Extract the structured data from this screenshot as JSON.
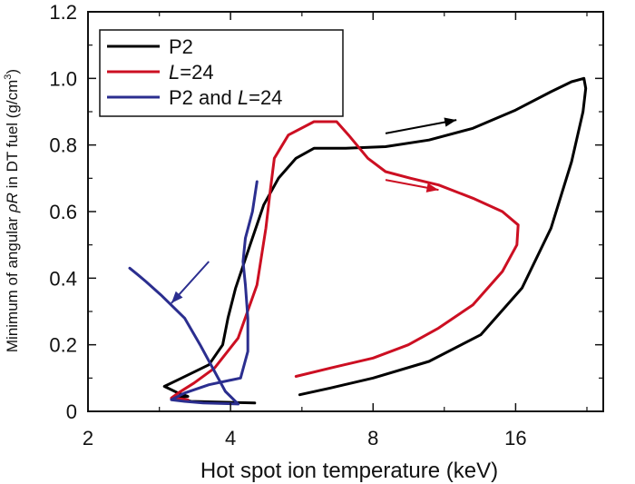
{
  "chart_data": {
    "type": "line",
    "xlabel": "Hot spot ion temperature (keV)",
    "ylabel": {
      "prefix": "Minimum of angular ",
      "symbol": "ρR",
      "suffix": " in DT fuel (g/cm",
      "sup": "3",
      "end": ")"
    },
    "x_scale": "log2",
    "xlim": [
      2,
      24.5
    ],
    "ylim": [
      0,
      1.2
    ],
    "x_ticks": [
      2,
      4,
      8,
      16
    ],
    "x_tick_labels": [
      "2",
      "4",
      "8",
      "16"
    ],
    "y_ticks": [
      0,
      0.2,
      0.4,
      0.6,
      0.8,
      1.0,
      1.2
    ],
    "y_tick_labels": [
      "0",
      "0.2",
      "0.4",
      "0.6",
      "0.8",
      "1.0",
      "1.2"
    ],
    "legend_position": "top-left",
    "series": [
      {
        "name": "P2",
        "legend_parts": [
          [
            "P2",
            "normal"
          ]
        ],
        "color": "#000000",
        "points": [
          [
            4.5,
            0.025
          ],
          [
            3.3,
            0.03
          ],
          [
            3.05,
            0.04
          ],
          [
            3.25,
            0.045
          ],
          [
            3.1,
            0.055
          ],
          [
            2.9,
            0.075
          ],
          [
            3.1,
            0.095
          ],
          [
            3.6,
            0.14
          ],
          [
            3.85,
            0.2
          ],
          [
            3.95,
            0.28
          ],
          [
            4.1,
            0.37
          ],
          [
            4.4,
            0.5
          ],
          [
            4.7,
            0.62
          ],
          [
            5.05,
            0.7
          ],
          [
            5.5,
            0.76
          ],
          [
            6.0,
            0.79
          ],
          [
            7.0,
            0.79
          ],
          [
            8.5,
            0.795
          ],
          [
            10.5,
            0.815
          ],
          [
            13.0,
            0.85
          ],
          [
            16.0,
            0.905
          ],
          [
            19.0,
            0.96
          ],
          [
            21.0,
            0.99
          ],
          [
            22.3,
            1.0
          ],
          [
            22.5,
            0.97
          ],
          [
            22.2,
            0.9
          ],
          [
            21.0,
            0.75
          ],
          [
            19.0,
            0.55
          ],
          [
            16.5,
            0.37
          ],
          [
            13.5,
            0.23
          ],
          [
            10.5,
            0.15
          ],
          [
            8.0,
            0.1
          ],
          [
            6.5,
            0.07
          ],
          [
            5.6,
            0.05
          ]
        ]
      },
      {
        "name": "L=24",
        "legend_parts": [
          [
            "L",
            "italic"
          ],
          [
            "=24",
            "normal"
          ]
        ],
        "color": "#cc0f22",
        "points": [
          [
            3.25,
            0.035
          ],
          [
            3.0,
            0.04
          ],
          [
            3.1,
            0.055
          ],
          [
            3.35,
            0.085
          ],
          [
            3.7,
            0.13
          ],
          [
            4.15,
            0.22
          ],
          [
            4.55,
            0.38
          ],
          [
            4.75,
            0.55
          ],
          [
            4.85,
            0.66
          ],
          [
            4.95,
            0.76
          ],
          [
            5.3,
            0.83
          ],
          [
            6.0,
            0.87
          ],
          [
            6.7,
            0.87
          ],
          [
            7.1,
            0.83
          ],
          [
            7.8,
            0.76
          ],
          [
            8.5,
            0.72
          ],
          [
            9.6,
            0.7
          ],
          [
            11.0,
            0.68
          ],
          [
            13.0,
            0.64
          ],
          [
            15.0,
            0.6
          ],
          [
            16.2,
            0.56
          ],
          [
            16.1,
            0.5
          ],
          [
            15.0,
            0.42
          ],
          [
            13.0,
            0.32
          ],
          [
            11.0,
            0.25
          ],
          [
            9.5,
            0.2
          ],
          [
            8.0,
            0.16
          ],
          [
            6.5,
            0.13
          ],
          [
            5.5,
            0.105
          ]
        ]
      },
      {
        "name": "P2 and L=24",
        "legend_parts": [
          [
            "P2 and ",
            "normal"
          ],
          [
            "L",
            "italic"
          ],
          [
            "=24",
            "normal"
          ]
        ],
        "color": "#2b2e8f",
        "points": [
          [
            4.55,
            0.69
          ],
          [
            4.45,
            0.6
          ],
          [
            4.3,
            0.52
          ],
          [
            4.25,
            0.45
          ],
          [
            4.3,
            0.38
          ],
          [
            4.35,
            0.28
          ],
          [
            4.35,
            0.18
          ],
          [
            4.2,
            0.1
          ],
          [
            3.6,
            0.08
          ],
          [
            3.2,
            0.055
          ],
          [
            3.0,
            0.035
          ],
          [
            3.2,
            0.03
          ],
          [
            3.5,
            0.025
          ],
          [
            4.15,
            0.022
          ],
          [
            3.9,
            0.06
          ],
          [
            3.7,
            0.12
          ],
          [
            3.45,
            0.2
          ],
          [
            3.2,
            0.28
          ],
          [
            2.85,
            0.35
          ],
          [
            2.65,
            0.39
          ],
          [
            2.55,
            0.41
          ],
          [
            2.45,
            0.43
          ]
        ]
      }
    ],
    "annotations": [
      {
        "type": "arrow",
        "color": "#000000",
        "from": [
          8.5,
          0.835
        ],
        "to": [
          12.0,
          0.875
        ]
      },
      {
        "type": "arrow",
        "color": "#cc0f22",
        "from": [
          8.5,
          0.695
        ],
        "to": [
          11.0,
          0.665
        ]
      },
      {
        "type": "arrow",
        "color": "#2b2e8f",
        "from": [
          3.6,
          0.45
        ],
        "to": [
          3.0,
          0.325
        ]
      }
    ]
  }
}
